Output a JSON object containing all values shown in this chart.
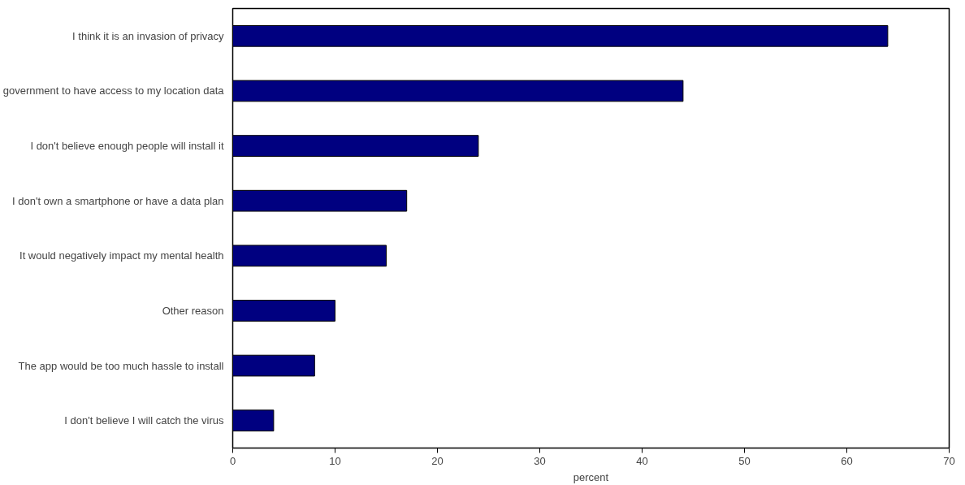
{
  "chart_data": {
    "type": "bar",
    "orientation": "horizontal",
    "xlabel": "percent",
    "categories": [
      "I think it is an invasion of privacy",
      "government to have access to my location data",
      "I don't believe enough people will install it",
      "I don't own a smartphone or have a data plan",
      "It would negatively impact my mental health",
      "Other reason",
      "The app would be too much hassle to install",
      "I don't believe I will catch the virus"
    ],
    "values": [
      64,
      44,
      24,
      17,
      15,
      10,
      8,
      4
    ],
    "color": "#000080",
    "xlim": [
      0,
      70
    ],
    "xticks": [
      0,
      10,
      20,
      30,
      40,
      50,
      60,
      70
    ],
    "grid": false
  }
}
